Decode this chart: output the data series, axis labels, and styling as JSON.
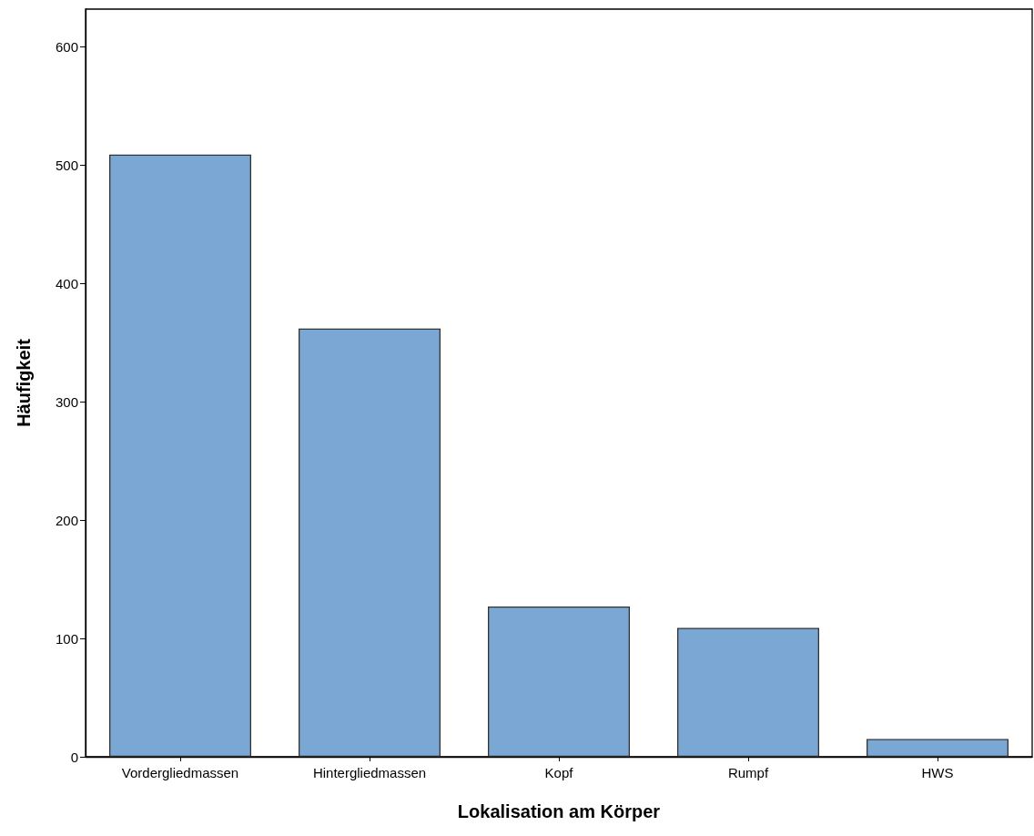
{
  "chart_data": {
    "type": "bar",
    "xlabel": "Lokalisation am Körper",
    "ylabel": "Häufigkeit",
    "categories": [
      "Vordergliedmassen",
      "Hintergliedmassen",
      "Kopf",
      "Rumpf",
      "HWS"
    ],
    "values": [
      509,
      362,
      127,
      109,
      15
    ],
    "color": "#7ba7d4",
    "ylim": [
      0,
      632
    ],
    "yticks": [
      0,
      100,
      200,
      300,
      400,
      500,
      600
    ],
    "grid": false
  }
}
